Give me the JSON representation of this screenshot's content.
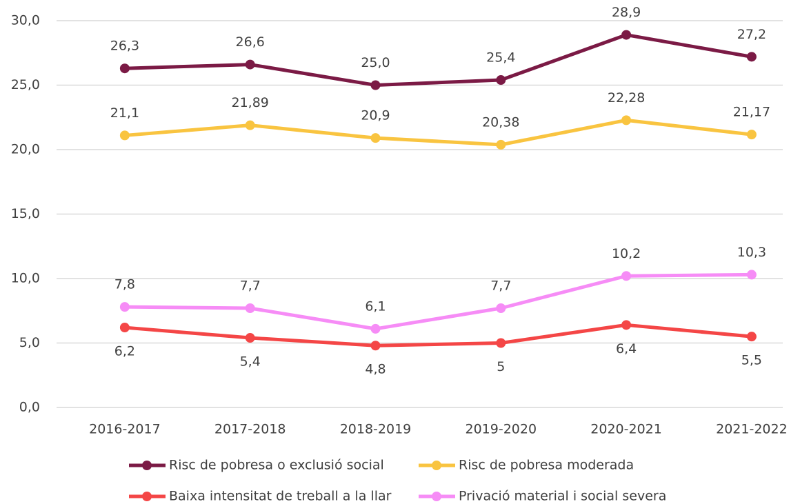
{
  "chart_data": {
    "type": "line",
    "categories": [
      "2016-2017",
      "2017-2018",
      "2018-2019",
      "2019-2020",
      "2020-2021",
      "2021-2022"
    ],
    "series": [
      {
        "name": "Risc de pobresa o exclusió social",
        "color": "#7b1a45",
        "values": [
          26.3,
          26.6,
          25.0,
          25.4,
          28.9,
          27.2
        ],
        "value_labels": [
          "26,3",
          "26,6",
          "25,0",
          "25,4",
          "28,9",
          "27,2"
        ]
      },
      {
        "name": "Risc de pobresa moderada",
        "color": "#f9c440",
        "values": [
          21.1,
          21.89,
          20.9,
          20.38,
          22.28,
          21.17
        ],
        "value_labels": [
          "21,1",
          "21,89",
          "20,9",
          "20,38",
          "22,28",
          "21,17"
        ]
      },
      {
        "name": "Baixa intensitat de treball a la llar",
        "color": "#f44646",
        "values": [
          6.2,
          5.4,
          4.8,
          5,
          6.4,
          5.5
        ],
        "value_labels": [
          "6,2",
          "5,4",
          "4,8",
          "5",
          "6,4",
          "5,5"
        ]
      },
      {
        "name": "Privació material i social severa",
        "color": "#f68cf6",
        "values": [
          7.8,
          7.7,
          6.1,
          7.7,
          10.2,
          10.3
        ],
        "value_labels": [
          "7,8",
          "7,7",
          "6,1",
          "7,7",
          "10,2",
          "10,3"
        ]
      }
    ],
    "ylim": [
      0,
      30
    ],
    "yticks": [
      {
        "value": 0,
        "label": "0,0"
      },
      {
        "value": 5,
        "label": "5,0"
      },
      {
        "value": 10,
        "label": "10,0"
      },
      {
        "value": 15,
        "label": "15,0"
      },
      {
        "value": 20,
        "label": "20,0"
      },
      {
        "value": 25,
        "label": "25,0"
      },
      {
        "value": 30,
        "label": "30,0"
      }
    ],
    "grid": true,
    "legend": "bottom"
  }
}
